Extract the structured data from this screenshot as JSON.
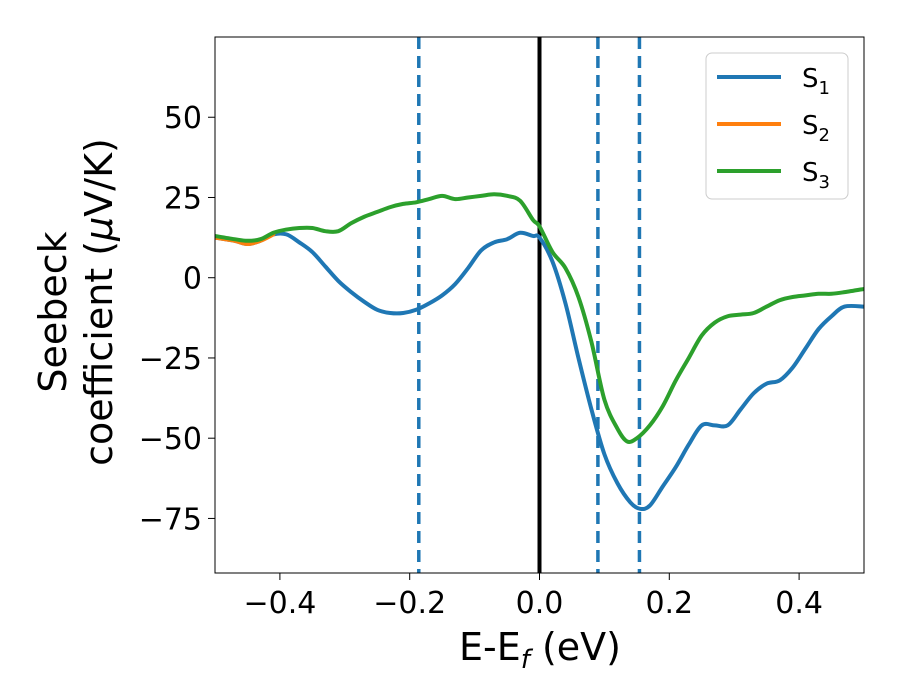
{
  "chart_data": {
    "type": "line",
    "xlabel": {
      "base": "E-E",
      "sub": "f",
      "rest": " (eV)"
    },
    "ylabel": {
      "line1": "Seebeck",
      "line2_pre": "coefficient  (",
      "mu": "μ",
      "line2_post": "V/K)"
    },
    "xlim": [
      -0.5,
      0.5
    ],
    "ylim": [
      -92,
      75
    ],
    "x_ticks": [
      -0.4,
      -0.2,
      0.0,
      0.2,
      0.4
    ],
    "x_tick_labels": [
      "−0.4",
      "−0.2",
      "0.0",
      "0.2",
      "0.4"
    ],
    "y_ticks": [
      50,
      25,
      0,
      -25,
      -50,
      -75
    ],
    "y_tick_labels": [
      "50",
      "25",
      "0",
      "−25",
      "−50",
      "−75"
    ],
    "grid": false,
    "legend_position": "top-right",
    "vlines": [
      {
        "x": 0.0,
        "style": "solid",
        "color": "#000000"
      },
      {
        "x": -0.186,
        "style": "dashed",
        "color": "#1f77b4"
      },
      {
        "x": 0.09,
        "style": "dashed",
        "color": "#1f77b4"
      },
      {
        "x": 0.154,
        "style": "dashed",
        "color": "#1f77b4"
      }
    ],
    "series": [
      {
        "name": "S",
        "sub": "1",
        "color": "#1f77b4",
        "x": [
          -0.5,
          -0.47,
          -0.45,
          -0.43,
          -0.41,
          -0.39,
          -0.37,
          -0.35,
          -0.33,
          -0.31,
          -0.29,
          -0.27,
          -0.25,
          -0.23,
          -0.21,
          -0.19,
          -0.17,
          -0.15,
          -0.13,
          -0.11,
          -0.09,
          -0.07,
          -0.05,
          -0.03,
          -0.01,
          0.0,
          0.02,
          0.04,
          0.06,
          0.08,
          0.1,
          0.12,
          0.14,
          0.155,
          0.17,
          0.19,
          0.21,
          0.23,
          0.25,
          0.27,
          0.29,
          0.31,
          0.33,
          0.35,
          0.37,
          0.39,
          0.41,
          0.43,
          0.45,
          0.47,
          0.5
        ],
        "y": [
          12.5,
          11.5,
          10.5,
          11.5,
          13.5,
          13.5,
          11,
          8,
          3.5,
          -1,
          -4.5,
          -7.5,
          -10,
          -11,
          -11,
          -10,
          -8,
          -5.5,
          -2,
          3,
          8.5,
          11,
          12,
          14,
          13,
          12.5,
          5,
          -8,
          -25,
          -41,
          -55,
          -64,
          -70,
          -72,
          -71,
          -65,
          -59,
          -52,
          -46,
          -46,
          -46,
          -41,
          -36,
          -33,
          -32,
          -28,
          -22,
          -16,
          -12,
          -9,
          -9
        ]
      },
      {
        "name": "S",
        "sub": "2",
        "color": "#ff7f0e",
        "x": [
          -0.5,
          -0.47,
          -0.45,
          -0.43,
          -0.41
        ],
        "y": [
          12.5,
          11.5,
          10.5,
          11.5,
          13.5
        ]
      },
      {
        "name": "S",
        "sub": "3",
        "color": "#2ca02c",
        "x": [
          -0.5,
          -0.47,
          -0.45,
          -0.43,
          -0.41,
          -0.39,
          -0.37,
          -0.35,
          -0.33,
          -0.31,
          -0.29,
          -0.27,
          -0.25,
          -0.23,
          -0.21,
          -0.19,
          -0.17,
          -0.15,
          -0.13,
          -0.11,
          -0.09,
          -0.07,
          -0.05,
          -0.03,
          -0.01,
          0.0,
          0.02,
          0.04,
          0.06,
          0.08,
          0.1,
          0.12,
          0.135,
          0.15,
          0.17,
          0.19,
          0.21,
          0.23,
          0.25,
          0.27,
          0.29,
          0.31,
          0.33,
          0.35,
          0.37,
          0.39,
          0.41,
          0.43,
          0.45,
          0.47,
          0.5
        ],
        "y": [
          13,
          12,
          11.5,
          12,
          14,
          15,
          15.5,
          15.5,
          14.5,
          14.5,
          17,
          19,
          20.5,
          22,
          23,
          23.5,
          24.5,
          25.5,
          24.5,
          25,
          25.5,
          26,
          25.5,
          24,
          18,
          16,
          8,
          3,
          -6,
          -20,
          -38,
          -47,
          -51,
          -50,
          -46,
          -40,
          -32,
          -25,
          -18,
          -14,
          -12,
          -11.5,
          -11,
          -9,
          -7,
          -6,
          -5.5,
          -5,
          -5,
          -4.5,
          -3.5
        ]
      }
    ]
  }
}
